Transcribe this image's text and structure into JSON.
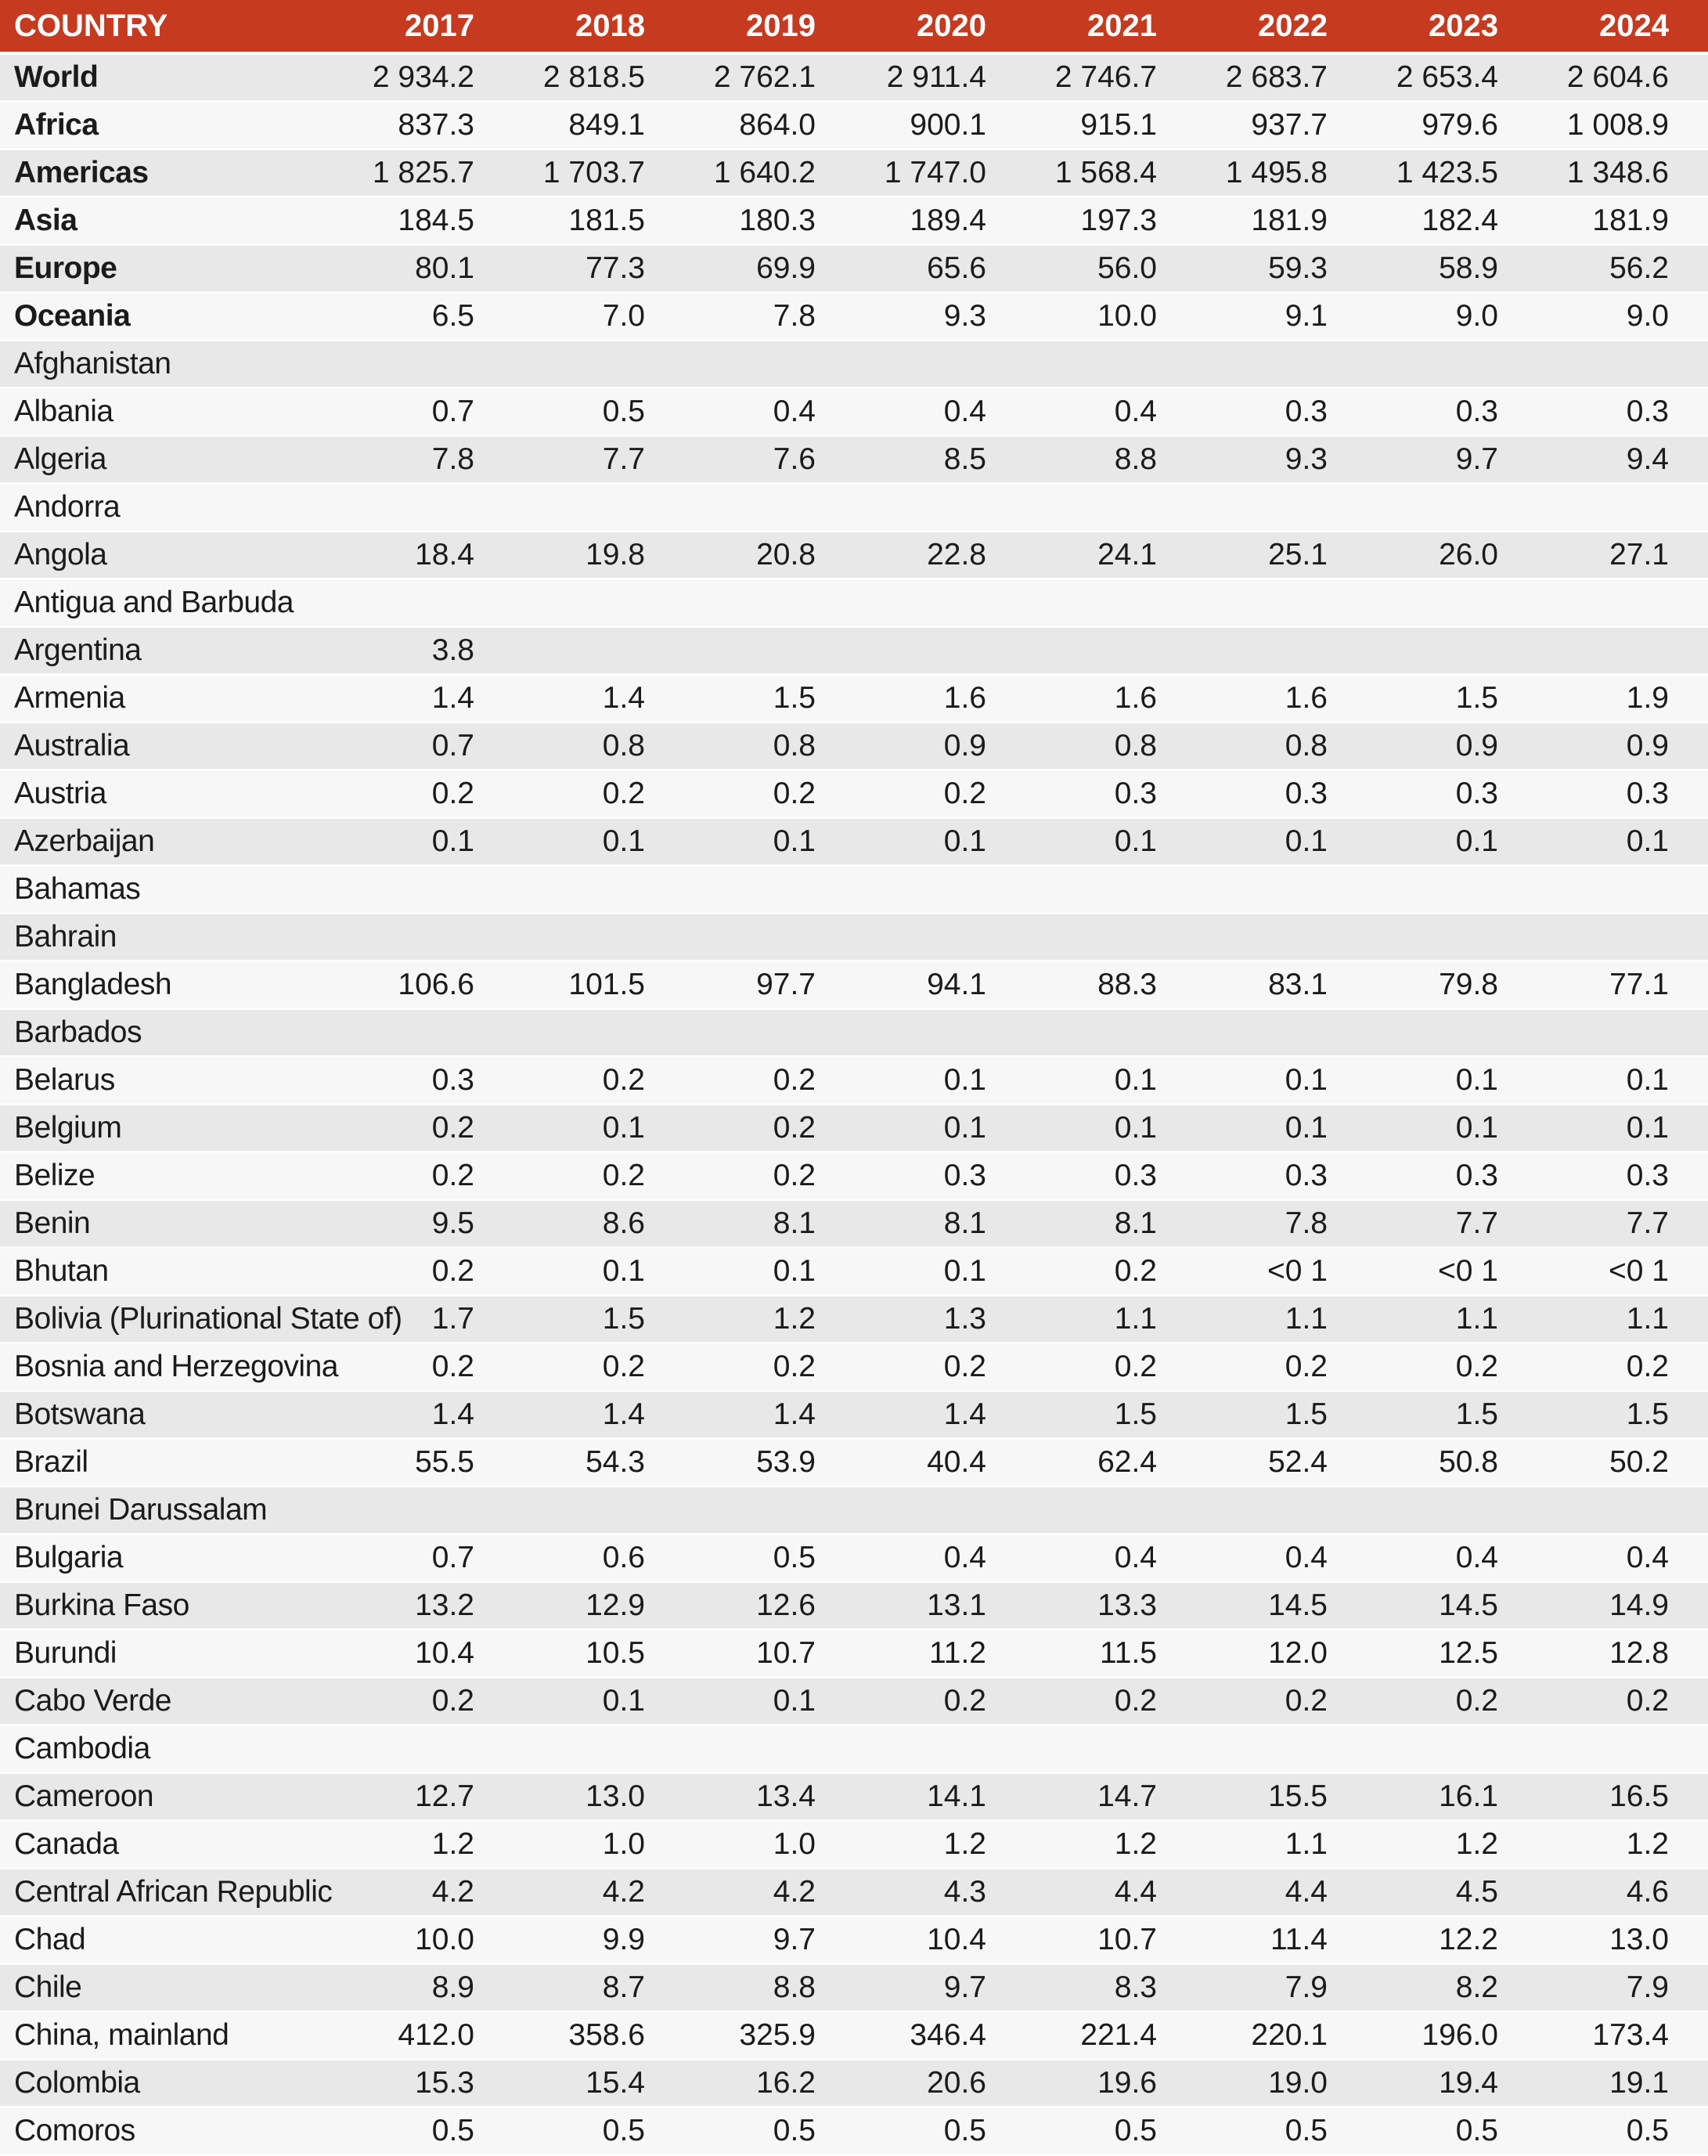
{
  "colors": {
    "header_bg": "#C63A20",
    "header_text": "#FFFFFF",
    "row_shaded": "#E8E8E8",
    "row_plain": "#F7F7F7",
    "separator": "#FCFCFC",
    "body_text": "#1B1B1B"
  },
  "chart_data": {
    "type": "table",
    "country_label": "COUNTRY",
    "columns": [
      "2017",
      "2018",
      "2019",
      "2020",
      "2021",
      "2022",
      "2023",
      "2024"
    ],
    "rows": [
      {
        "name": "World",
        "bold": true,
        "values": [
          "2 934.2",
          "2 818.5",
          "2 762.1",
          "2 911.4",
          "2 746.7",
          "2 683.7",
          "2 653.4",
          "2 604.6"
        ]
      },
      {
        "name": "Africa",
        "bold": true,
        "values": [
          "837.3",
          "849.1",
          "864.0",
          "900.1",
          "915.1",
          "937.7",
          "979.6",
          "1 008.9"
        ]
      },
      {
        "name": "Americas",
        "bold": true,
        "values": [
          "1 825.7",
          "1 703.7",
          "1 640.2",
          "1 747.0",
          "1 568.4",
          "1 495.8",
          "1 423.5",
          "1 348.6"
        ]
      },
      {
        "name": "Asia",
        "bold": true,
        "values": [
          "184.5",
          "181.5",
          "180.3",
          "189.4",
          "197.3",
          "181.9",
          "182.4",
          "181.9"
        ]
      },
      {
        "name": "Europe",
        "bold": true,
        "values": [
          "80.1",
          "77.3",
          "69.9",
          "65.6",
          "56.0",
          "59.3",
          "58.9",
          "56.2"
        ]
      },
      {
        "name": "Oceania",
        "bold": true,
        "values": [
          "6.5",
          "7.0",
          "7.8",
          "9.3",
          "10.0",
          "9.1",
          "9.0",
          "9.0"
        ]
      },
      {
        "name": "Afghanistan",
        "bold": false,
        "values": [
          "",
          "",
          "",
          "",
          "",
          "",
          "",
          ""
        ]
      },
      {
        "name": "Albania",
        "bold": false,
        "values": [
          "0.7",
          "0.5",
          "0.4",
          "0.4",
          "0.4",
          "0.3",
          "0.3",
          "0.3"
        ]
      },
      {
        "name": "Algeria",
        "bold": false,
        "values": [
          "7.8",
          "7.7",
          "7.6",
          "8.5",
          "8.8",
          "9.3",
          "9.7",
          "9.4"
        ]
      },
      {
        "name": "Andorra",
        "bold": false,
        "values": [
          "",
          "",
          "",
          "",
          "",
          "",
          "",
          ""
        ]
      },
      {
        "name": "Angola",
        "bold": false,
        "values": [
          "18.4",
          "19.8",
          "20.8",
          "22.8",
          "24.1",
          "25.1",
          "26.0",
          "27.1"
        ]
      },
      {
        "name": "Antigua and Barbuda",
        "bold": false,
        "values": [
          "",
          "",
          "",
          "",
          "",
          "",
          "",
          ""
        ]
      },
      {
        "name": "Argentina",
        "bold": false,
        "values": [
          "3.8",
          "",
          "",
          "",
          "",
          "",
          "",
          ""
        ]
      },
      {
        "name": "Armenia",
        "bold": false,
        "values": [
          "1.4",
          "1.4",
          "1.5",
          "1.6",
          "1.6",
          "1.6",
          "1.5",
          "1.9"
        ]
      },
      {
        "name": "Australia",
        "bold": false,
        "values": [
          "0.7",
          "0.8",
          "0.8",
          "0.9",
          "0.8",
          "0.8",
          "0.9",
          "0.9"
        ]
      },
      {
        "name": "Austria",
        "bold": false,
        "values": [
          "0.2",
          "0.2",
          "0.2",
          "0.2",
          "0.3",
          "0.3",
          "0.3",
          "0.3"
        ]
      },
      {
        "name": "Azerbaijan",
        "bold": false,
        "values": [
          "0.1",
          "0.1",
          "0.1",
          "0.1",
          "0.1",
          "0.1",
          "0.1",
          "0.1"
        ]
      },
      {
        "name": "Bahamas",
        "bold": false,
        "values": [
          "",
          "",
          "",
          "",
          "",
          "",
          "",
          ""
        ]
      },
      {
        "name": "Bahrain",
        "bold": false,
        "values": [
          "",
          "",
          "",
          "",
          "",
          "",
          "",
          ""
        ]
      },
      {
        "name": "Bangladesh",
        "bold": false,
        "values": [
          "106.6",
          "101.5",
          "97.7",
          "94.1",
          "88.3",
          "83.1",
          "79.8",
          "77.1"
        ]
      },
      {
        "name": "Barbados",
        "bold": false,
        "values": [
          "",
          "",
          "",
          "",
          "",
          "",
          "",
          ""
        ]
      },
      {
        "name": "Belarus",
        "bold": false,
        "values": [
          "0.3",
          "0.2",
          "0.2",
          "0.1",
          "0.1",
          "0.1",
          "0.1",
          "0.1"
        ]
      },
      {
        "name": "Belgium",
        "bold": false,
        "values": [
          "0.2",
          "0.1",
          "0.2",
          "0.1",
          "0.1",
          "0.1",
          "0.1",
          "0.1"
        ]
      },
      {
        "name": "Belize",
        "bold": false,
        "values": [
          "0.2",
          "0.2",
          "0.2",
          "0.3",
          "0.3",
          "0.3",
          "0.3",
          "0.3"
        ]
      },
      {
        "name": "Benin",
        "bold": false,
        "values": [
          "9.5",
          "8.6",
          "8.1",
          "8.1",
          "8.1",
          "7.8",
          "7.7",
          "7.7"
        ]
      },
      {
        "name": "Bhutan",
        "bold": false,
        "values": [
          "0.2",
          "0.1",
          "0.1",
          "0.1",
          "0.2",
          "<0 1",
          "<0 1",
          "<0 1"
        ]
      },
      {
        "name": "Bolivia (Plurinational State of)",
        "bold": false,
        "values": [
          "1.7",
          "1.5",
          "1.2",
          "1.3",
          "1.1",
          "1.1",
          "1.1",
          "1.1"
        ]
      },
      {
        "name": "Bosnia and Herzegovina",
        "bold": false,
        "values": [
          "0.2",
          "0.2",
          "0.2",
          "0.2",
          "0.2",
          "0.2",
          "0.2",
          "0.2"
        ]
      },
      {
        "name": "Botswana",
        "bold": false,
        "values": [
          "1.4",
          "1.4",
          "1.4",
          "1.4",
          "1.5",
          "1.5",
          "1.5",
          "1.5"
        ]
      },
      {
        "name": "Brazil",
        "bold": false,
        "values": [
          "55.5",
          "54.3",
          "53.9",
          "40.4",
          "62.4",
          "52.4",
          "50.8",
          "50.2"
        ]
      },
      {
        "name": "Brunei Darussalam",
        "bold": false,
        "values": [
          "",
          "",
          "",
          "",
          "",
          "",
          "",
          ""
        ]
      },
      {
        "name": "Bulgaria",
        "bold": false,
        "values": [
          "0.7",
          "0.6",
          "0.5",
          "0.4",
          "0.4",
          "0.4",
          "0.4",
          "0.4"
        ]
      },
      {
        "name": "Burkina Faso",
        "bold": false,
        "values": [
          "13.2",
          "12.9",
          "12.6",
          "13.1",
          "13.3",
          "14.5",
          "14.5",
          "14.9"
        ]
      },
      {
        "name": "Burundi",
        "bold": false,
        "values": [
          "10.4",
          "10.5",
          "10.7",
          "11.2",
          "11.5",
          "12.0",
          "12.5",
          "12.8"
        ]
      },
      {
        "name": "Cabo Verde",
        "bold": false,
        "values": [
          "0.2",
          "0.1",
          "0.1",
          "0.2",
          "0.2",
          "0.2",
          "0.2",
          "0.2"
        ]
      },
      {
        "name": "Cambodia",
        "bold": false,
        "values": [
          "",
          "",
          "",
          "",
          "",
          "",
          "",
          ""
        ]
      },
      {
        "name": "Cameroon",
        "bold": false,
        "values": [
          "12.7",
          "13.0",
          "13.4",
          "14.1",
          "14.7",
          "15.5",
          "16.1",
          "16.5"
        ]
      },
      {
        "name": "Canada",
        "bold": false,
        "values": [
          "1.2",
          "1.0",
          "1.0",
          "1.2",
          "1.2",
          "1.1",
          "1.2",
          "1.2"
        ]
      },
      {
        "name": "Central African Republic",
        "bold": false,
        "values": [
          "4.2",
          "4.2",
          "4.2",
          "4.3",
          "4.4",
          "4.4",
          "4.5",
          "4.6"
        ]
      },
      {
        "name": "Chad",
        "bold": false,
        "values": [
          "10.0",
          "9.9",
          "9.7",
          "10.4",
          "10.7",
          "11.4",
          "12.2",
          "13.0"
        ]
      },
      {
        "name": "Chile",
        "bold": false,
        "values": [
          "8.9",
          "8.7",
          "8.8",
          "9.7",
          "8.3",
          "7.9",
          "8.2",
          "7.9"
        ]
      },
      {
        "name": "China, mainland",
        "bold": false,
        "values": [
          "412.0",
          "358.6",
          "325.9",
          "346.4",
          "221.4",
          "220.1",
          "196.0",
          "173.4"
        ]
      },
      {
        "name": "Colombia",
        "bold": false,
        "values": [
          "15.3",
          "15.4",
          "16.2",
          "20.6",
          "19.6",
          "19.0",
          "19.4",
          "19.1"
        ]
      },
      {
        "name": "Comoros",
        "bold": false,
        "values": [
          "0.5",
          "0.5",
          "0.5",
          "0.5",
          "0.5",
          "0.5",
          "0.5",
          "0.5"
        ]
      }
    ]
  }
}
